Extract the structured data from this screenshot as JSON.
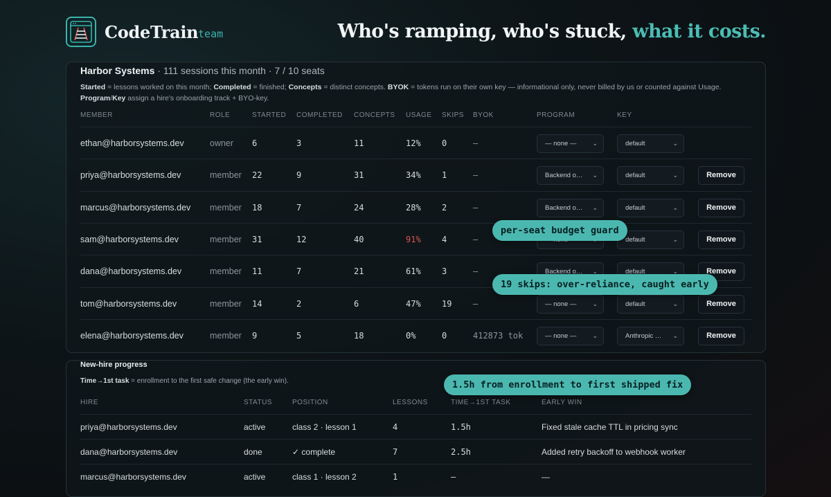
{
  "brand": {
    "name": "CodeTrain",
    "tag": "team"
  },
  "headline": {
    "main": "Who's ramping, who's stuck, ",
    "accent": "what it costs."
  },
  "team": {
    "name": "Harbor Systems",
    "summary": " · 111 sessions this month · 7 / 10 seats",
    "legend": [
      {
        "b": "Started"
      },
      {
        "t": " = lessons worked on this month; "
      },
      {
        "b": "Completed"
      },
      {
        "t": " = finished; "
      },
      {
        "b": "Concepts"
      },
      {
        "t": " = distinct concepts. "
      },
      {
        "b": "BYOK"
      },
      {
        "t": " = tokens run on their own key — informational only, never billed by us or counted against Usage. "
      },
      {
        "b": "Program"
      },
      {
        "t": "/"
      },
      {
        "b": "Key"
      },
      {
        "t": " assign a hire's onboarding track + BYO-key."
      }
    ],
    "columns": [
      "MEMBER",
      "ROLE",
      "STARTED",
      "COMPLETED",
      "CONCEPTS",
      "USAGE",
      "SKIPS",
      "BYOK",
      "PROGRAM",
      "KEY"
    ],
    "remove_label": "Remove",
    "rows": [
      {
        "member": "ethan@harborsystems.dev",
        "role": "owner",
        "started": "6",
        "completed": "3",
        "concepts": "11",
        "usage": "12%",
        "skips": "0",
        "byok": "—",
        "program": "— none —",
        "key": "default",
        "removable": false,
        "usage_alert": false
      },
      {
        "member": "priya@harborsystems.dev",
        "role": "member",
        "started": "22",
        "completed": "9",
        "concepts": "31",
        "usage": "34%",
        "skips": "1",
        "byok": "—",
        "program": "Backend o…",
        "key": "default",
        "removable": true,
        "usage_alert": false
      },
      {
        "member": "marcus@harborsystems.dev",
        "role": "member",
        "started": "18",
        "completed": "7",
        "concepts": "24",
        "usage": "28%",
        "skips": "2",
        "byok": "—",
        "program": "Backend o…",
        "key": "default",
        "removable": true,
        "usage_alert": false
      },
      {
        "member": "sam@harborsystems.dev",
        "role": "member",
        "started": "31",
        "completed": "12",
        "concepts": "40",
        "usage": "91%",
        "skips": "4",
        "byok": "—",
        "program": "— none —",
        "key": "default",
        "removable": true,
        "usage_alert": true
      },
      {
        "member": "dana@harborsystems.dev",
        "role": "member",
        "started": "11",
        "completed": "7",
        "concepts": "21",
        "usage": "61%",
        "skips": "3",
        "byok": "—",
        "program": "Backend o…",
        "key": "default",
        "removable": true,
        "usage_alert": false
      },
      {
        "member": "tom@harborsystems.dev",
        "role": "member",
        "started": "14",
        "completed": "2",
        "concepts": "6",
        "usage": "47%",
        "skips": "19",
        "byok": "—",
        "program": "— none —",
        "key": "default",
        "removable": true,
        "usage_alert": false
      },
      {
        "member": "elena@harborsystems.dev",
        "role": "member",
        "started": "9",
        "completed": "5",
        "concepts": "18",
        "usage": "0%",
        "skips": "0",
        "byok": "412873 tok",
        "program": "— none —",
        "key": "Anthropic …",
        "removable": true,
        "usage_alert": false
      }
    ]
  },
  "hires": {
    "title": "New-hire progress",
    "note_bold": "Time→1st task",
    "note_rest": " = enrollment to the first safe change (the early win).",
    "columns": [
      "HIRE",
      "STATUS",
      "POSITION",
      "LESSONS",
      "TIME→1ST TASK",
      "EARLY WIN"
    ],
    "rows": [
      {
        "hire": "priya@harborsystems.dev",
        "status": "active",
        "position": "class 2 · lesson 1",
        "lessons": "4",
        "time": "1.5h",
        "win": "Fixed stale cache TTL in pricing sync"
      },
      {
        "hire": "dana@harborsystems.dev",
        "status": "done",
        "position": "✓ complete",
        "lessons": "7",
        "time": "2.5h",
        "win": "Added retry backoff to webhook worker"
      },
      {
        "hire": "marcus@harborsystems.dev",
        "status": "active",
        "position": "class 1 · lesson 2",
        "lessons": "1",
        "time": "—",
        "win": "—"
      }
    ]
  },
  "callouts": [
    {
      "text": "per-seat budget guard"
    },
    {
      "text": "19 skips: over-reliance, caught early"
    },
    {
      "text": "1.5h from enrollment to first shipped fix"
    }
  ],
  "icons": {
    "logo": "train-track-icon",
    "chevron": "chevron-down-icon"
  },
  "colors": {
    "accent": "#4bbdb4",
    "alert": "#d9544f"
  }
}
